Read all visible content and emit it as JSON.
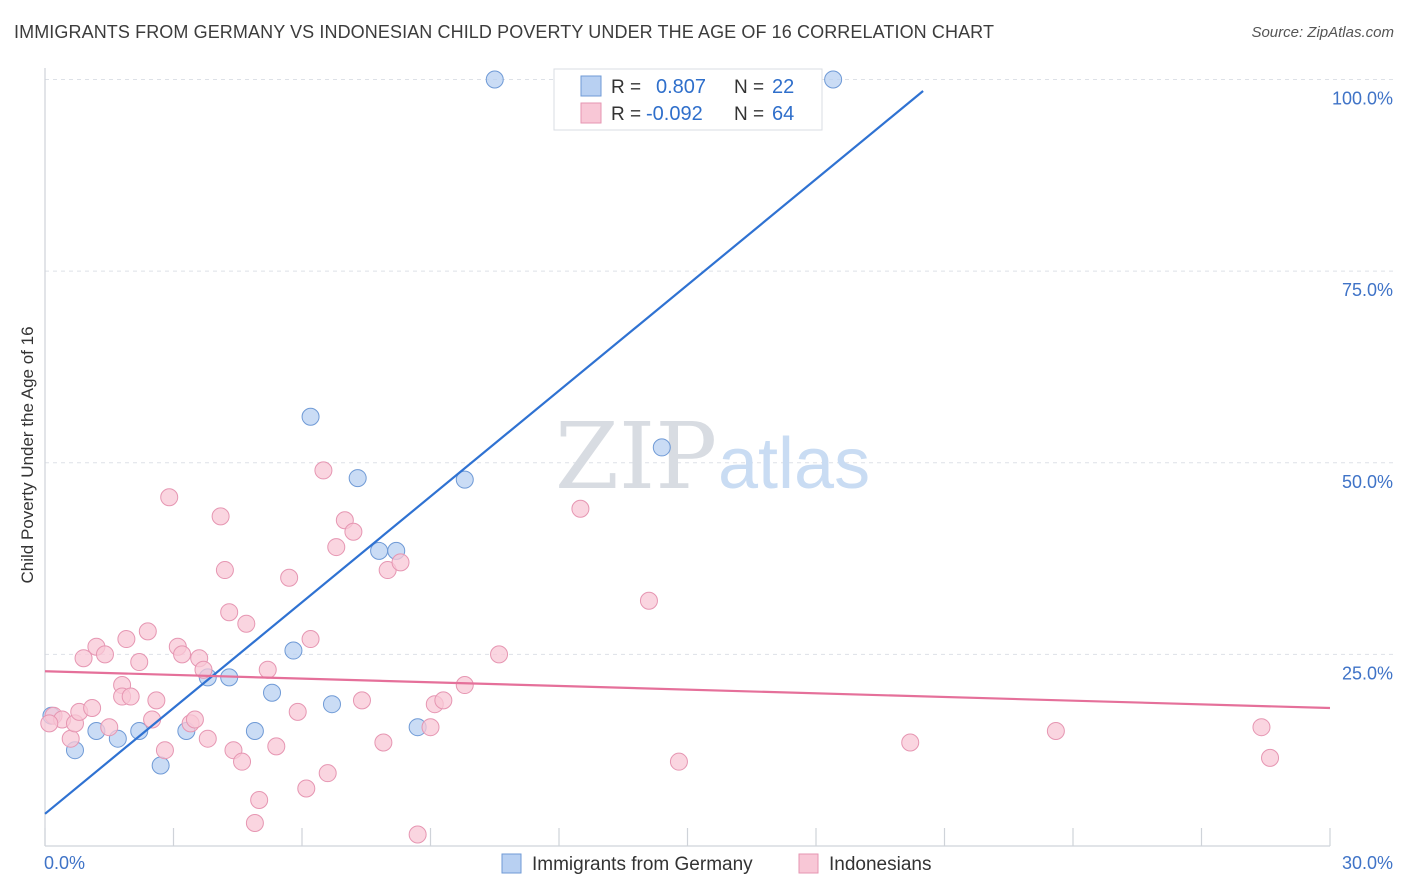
{
  "title": "IMMIGRANTS FROM GERMANY VS INDONESIAN CHILD POVERTY UNDER THE AGE OF 16 CORRELATION CHART",
  "source": "Source: ZipAtlas.com",
  "watermark": {
    "zip": "ZIP",
    "atlas": "atlas"
  },
  "legend_box": {
    "rows": [
      {
        "r_label": "R =",
        "r_value": "0.807",
        "n_label": "N =",
        "n_value": "22"
      },
      {
        "r_label": "R =",
        "r_value": "-0.092",
        "n_label": "N =",
        "n_value": "64"
      }
    ]
  },
  "bottom_legend": [
    "Immigrants from Germany",
    "Indonesians"
  ],
  "colors": {
    "blue_fill": "#b8d0f2",
    "blue_stroke": "#6f9ad6",
    "blue_line": "#2f72d2",
    "pink_fill": "#f8c7d6",
    "pink_stroke": "#e696b2",
    "pink_line": "#e5709a",
    "axis_text": "#3f73c7",
    "grid": "#dde1e7"
  },
  "chart_data": {
    "type": "scatter",
    "xlabel": "",
    "ylabel": "Child Poverty Under the Age of 16",
    "xlim": [
      0,
      30
    ],
    "ylim": [
      0,
      100
    ],
    "x_tick_labels": [
      "0.0%",
      "30.0%"
    ],
    "y_tick_labels": [
      "25.0%",
      "50.0%",
      "75.0%",
      "100.0%"
    ],
    "y_ticks": [
      25,
      50,
      75,
      100
    ],
    "grid": true,
    "series": [
      {
        "name": "Immigrants from Germany",
        "color": "#b8d0f2",
        "points": [
          [
            0.15,
            17.0
          ],
          [
            0.7,
            12.5
          ],
          [
            1.2,
            15.0
          ],
          [
            1.7,
            14.0
          ],
          [
            2.2,
            15.0
          ],
          [
            2.7,
            10.5
          ],
          [
            3.3,
            15.0
          ],
          [
            3.8,
            22.0
          ],
          [
            4.3,
            22.0
          ],
          [
            4.9,
            15.0
          ],
          [
            5.3,
            20.0
          ],
          [
            5.8,
            25.5
          ],
          [
            6.2,
            56.0
          ],
          [
            6.7,
            18.5
          ],
          [
            7.3,
            48.0
          ],
          [
            7.8,
            38.5
          ],
          [
            8.2,
            38.5
          ],
          [
            8.7,
            15.5
          ],
          [
            9.8,
            47.8
          ],
          [
            10.5,
            100.0
          ],
          [
            14.4,
            52.0
          ],
          [
            18.4,
            100.0
          ]
        ]
      },
      {
        "name": "Indonesians",
        "color": "#f8c7d6",
        "points": [
          [
            0.2,
            17.0
          ],
          [
            0.4,
            16.5
          ],
          [
            0.6,
            14.0
          ],
          [
            0.7,
            16.0
          ],
          [
            0.8,
            17.5
          ],
          [
            0.9,
            24.5
          ],
          [
            1.1,
            18.0
          ],
          [
            1.2,
            26.0
          ],
          [
            1.4,
            25.0
          ],
          [
            1.5,
            15.5
          ],
          [
            1.8,
            21.0
          ],
          [
            1.8,
            19.5
          ],
          [
            1.9,
            27.0
          ],
          [
            2.0,
            19.5
          ],
          [
            2.2,
            24.0
          ],
          [
            2.4,
            28.0
          ],
          [
            2.5,
            16.5
          ],
          [
            2.6,
            19.0
          ],
          [
            2.8,
            12.5
          ],
          [
            2.9,
            45.5
          ],
          [
            3.1,
            26.0
          ],
          [
            3.2,
            25.0
          ],
          [
            3.4,
            16.0
          ],
          [
            3.5,
            16.5
          ],
          [
            3.6,
            24.5
          ],
          [
            3.7,
            23.0
          ],
          [
            3.8,
            14.0
          ],
          [
            4.1,
            43.0
          ],
          [
            4.2,
            36.0
          ],
          [
            4.3,
            30.5
          ],
          [
            4.4,
            12.5
          ],
          [
            4.6,
            11.0
          ],
          [
            4.7,
            29.0
          ],
          [
            4.9,
            3.0
          ],
          [
            5.0,
            6.0
          ],
          [
            5.2,
            23.0
          ],
          [
            5.4,
            13.0
          ],
          [
            5.7,
            35.0
          ],
          [
            5.9,
            17.5
          ],
          [
            6.1,
            7.5
          ],
          [
            6.2,
            27.0
          ],
          [
            6.5,
            49.0
          ],
          [
            6.6,
            9.5
          ],
          [
            6.8,
            39.0
          ],
          [
            7.0,
            42.5
          ],
          [
            7.2,
            41.0
          ],
          [
            7.4,
            19.0
          ],
          [
            7.9,
            13.5
          ],
          [
            8.0,
            36.0
          ],
          [
            8.3,
            37.0
          ],
          [
            8.7,
            1.5
          ],
          [
            9.0,
            15.5
          ],
          [
            9.1,
            18.5
          ],
          [
            9.3,
            19.0
          ],
          [
            9.8,
            21.0
          ],
          [
            10.6,
            25.0
          ],
          [
            12.5,
            44.0
          ],
          [
            14.1,
            32.0
          ],
          [
            14.8,
            11.0
          ],
          [
            20.2,
            13.5
          ],
          [
            23.6,
            15.0
          ],
          [
            28.4,
            15.5
          ],
          [
            28.6,
            11.5
          ],
          [
            0.1,
            16.0
          ]
        ]
      }
    ],
    "trend_lines": [
      {
        "series": "Immigrants from Germany",
        "from": [
          0,
          4.2
        ],
        "to": [
          20.5,
          98.5
        ]
      },
      {
        "series": "Indonesians",
        "from": [
          0,
          22.8
        ],
        "to": [
          30,
          18.0
        ]
      }
    ]
  }
}
